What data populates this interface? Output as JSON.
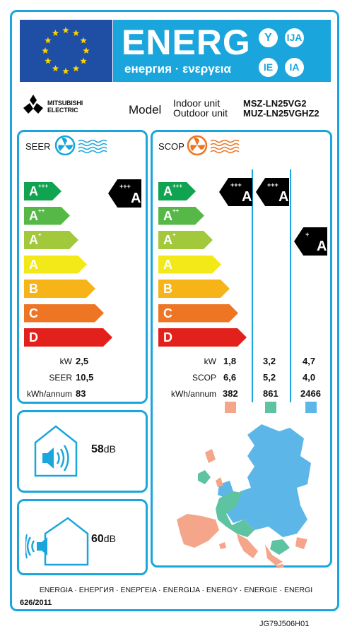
{
  "header": {
    "energy_word": "ENERG",
    "energy_subtitle": "енергия · ενεργεια",
    "lang_suffixes": [
      "Y",
      "IJA",
      "IE",
      "IA"
    ]
  },
  "supplier": {
    "brand": "MITSUBISHI ELECTRIC",
    "model_label": "Model",
    "indoor_label": "Indoor unit",
    "outdoor_label": "Outdoor unit",
    "indoor_model": "MSZ-LN25VG2",
    "outdoor_model": "MUZ-LN25VGHZ2"
  },
  "scale_classes": [
    {
      "letter": "A",
      "plus": "+++",
      "color": "#10a350"
    },
    {
      "letter": "A",
      "plus": "++",
      "color": "#56b947"
    },
    {
      "letter": "A",
      "plus": "+",
      "color": "#a2c83b"
    },
    {
      "letter": "A",
      "plus": "",
      "color": "#f3e818"
    },
    {
      "letter": "B",
      "plus": "",
      "color": "#f6b419"
    },
    {
      "letter": "C",
      "plus": "",
      "color": "#ee7523"
    },
    {
      "letter": "D",
      "plus": "",
      "color": "#e2211c"
    }
  ],
  "seer": {
    "title": "SEER",
    "class": {
      "letter": "A",
      "plus": "+++"
    },
    "rows": [
      {
        "label": "kW",
        "value": "2,5"
      },
      {
        "label": "SEER",
        "value": "10,5"
      },
      {
        "label": "kWh/annum",
        "value": "83"
      }
    ]
  },
  "scop": {
    "title": "SCOP",
    "classes": [
      {
        "letter": "A",
        "plus": "+++"
      },
      {
        "letter": "A",
        "plus": "+++"
      },
      {
        "letter": "A",
        "plus": "+"
      }
    ],
    "row_labels": [
      "kW",
      "SCOP",
      "kWh/annum"
    ],
    "columns": [
      {
        "kw": "1,8",
        "scop": "6,6",
        "kwh": "382",
        "color": "#f4a58a"
      },
      {
        "kw": "3,2",
        "scop": "5,2",
        "kwh": "861",
        "color": "#5dc3a0"
      },
      {
        "kw": "4,7",
        "scop": "4,0",
        "kwh": "2466",
        "color": "#5cb7e8"
      }
    ]
  },
  "noise": {
    "indoor": {
      "value": "58",
      "unit": "dB"
    },
    "outdoor": {
      "value": "60",
      "unit": "dB"
    }
  },
  "footer": {
    "languages": "ENERGIA · ЕНЕРГИЯ · ΕΝΕΡΓΕΙΑ · ENERGIJA · ENERGY · ENERGIE · ENERGI",
    "regulation": "626/2011",
    "code": "JG79J506H01"
  },
  "colors": {
    "frame": "#1aa6dd",
    "eu_blue": "#1f4fa5",
    "star": "#ffd400"
  }
}
